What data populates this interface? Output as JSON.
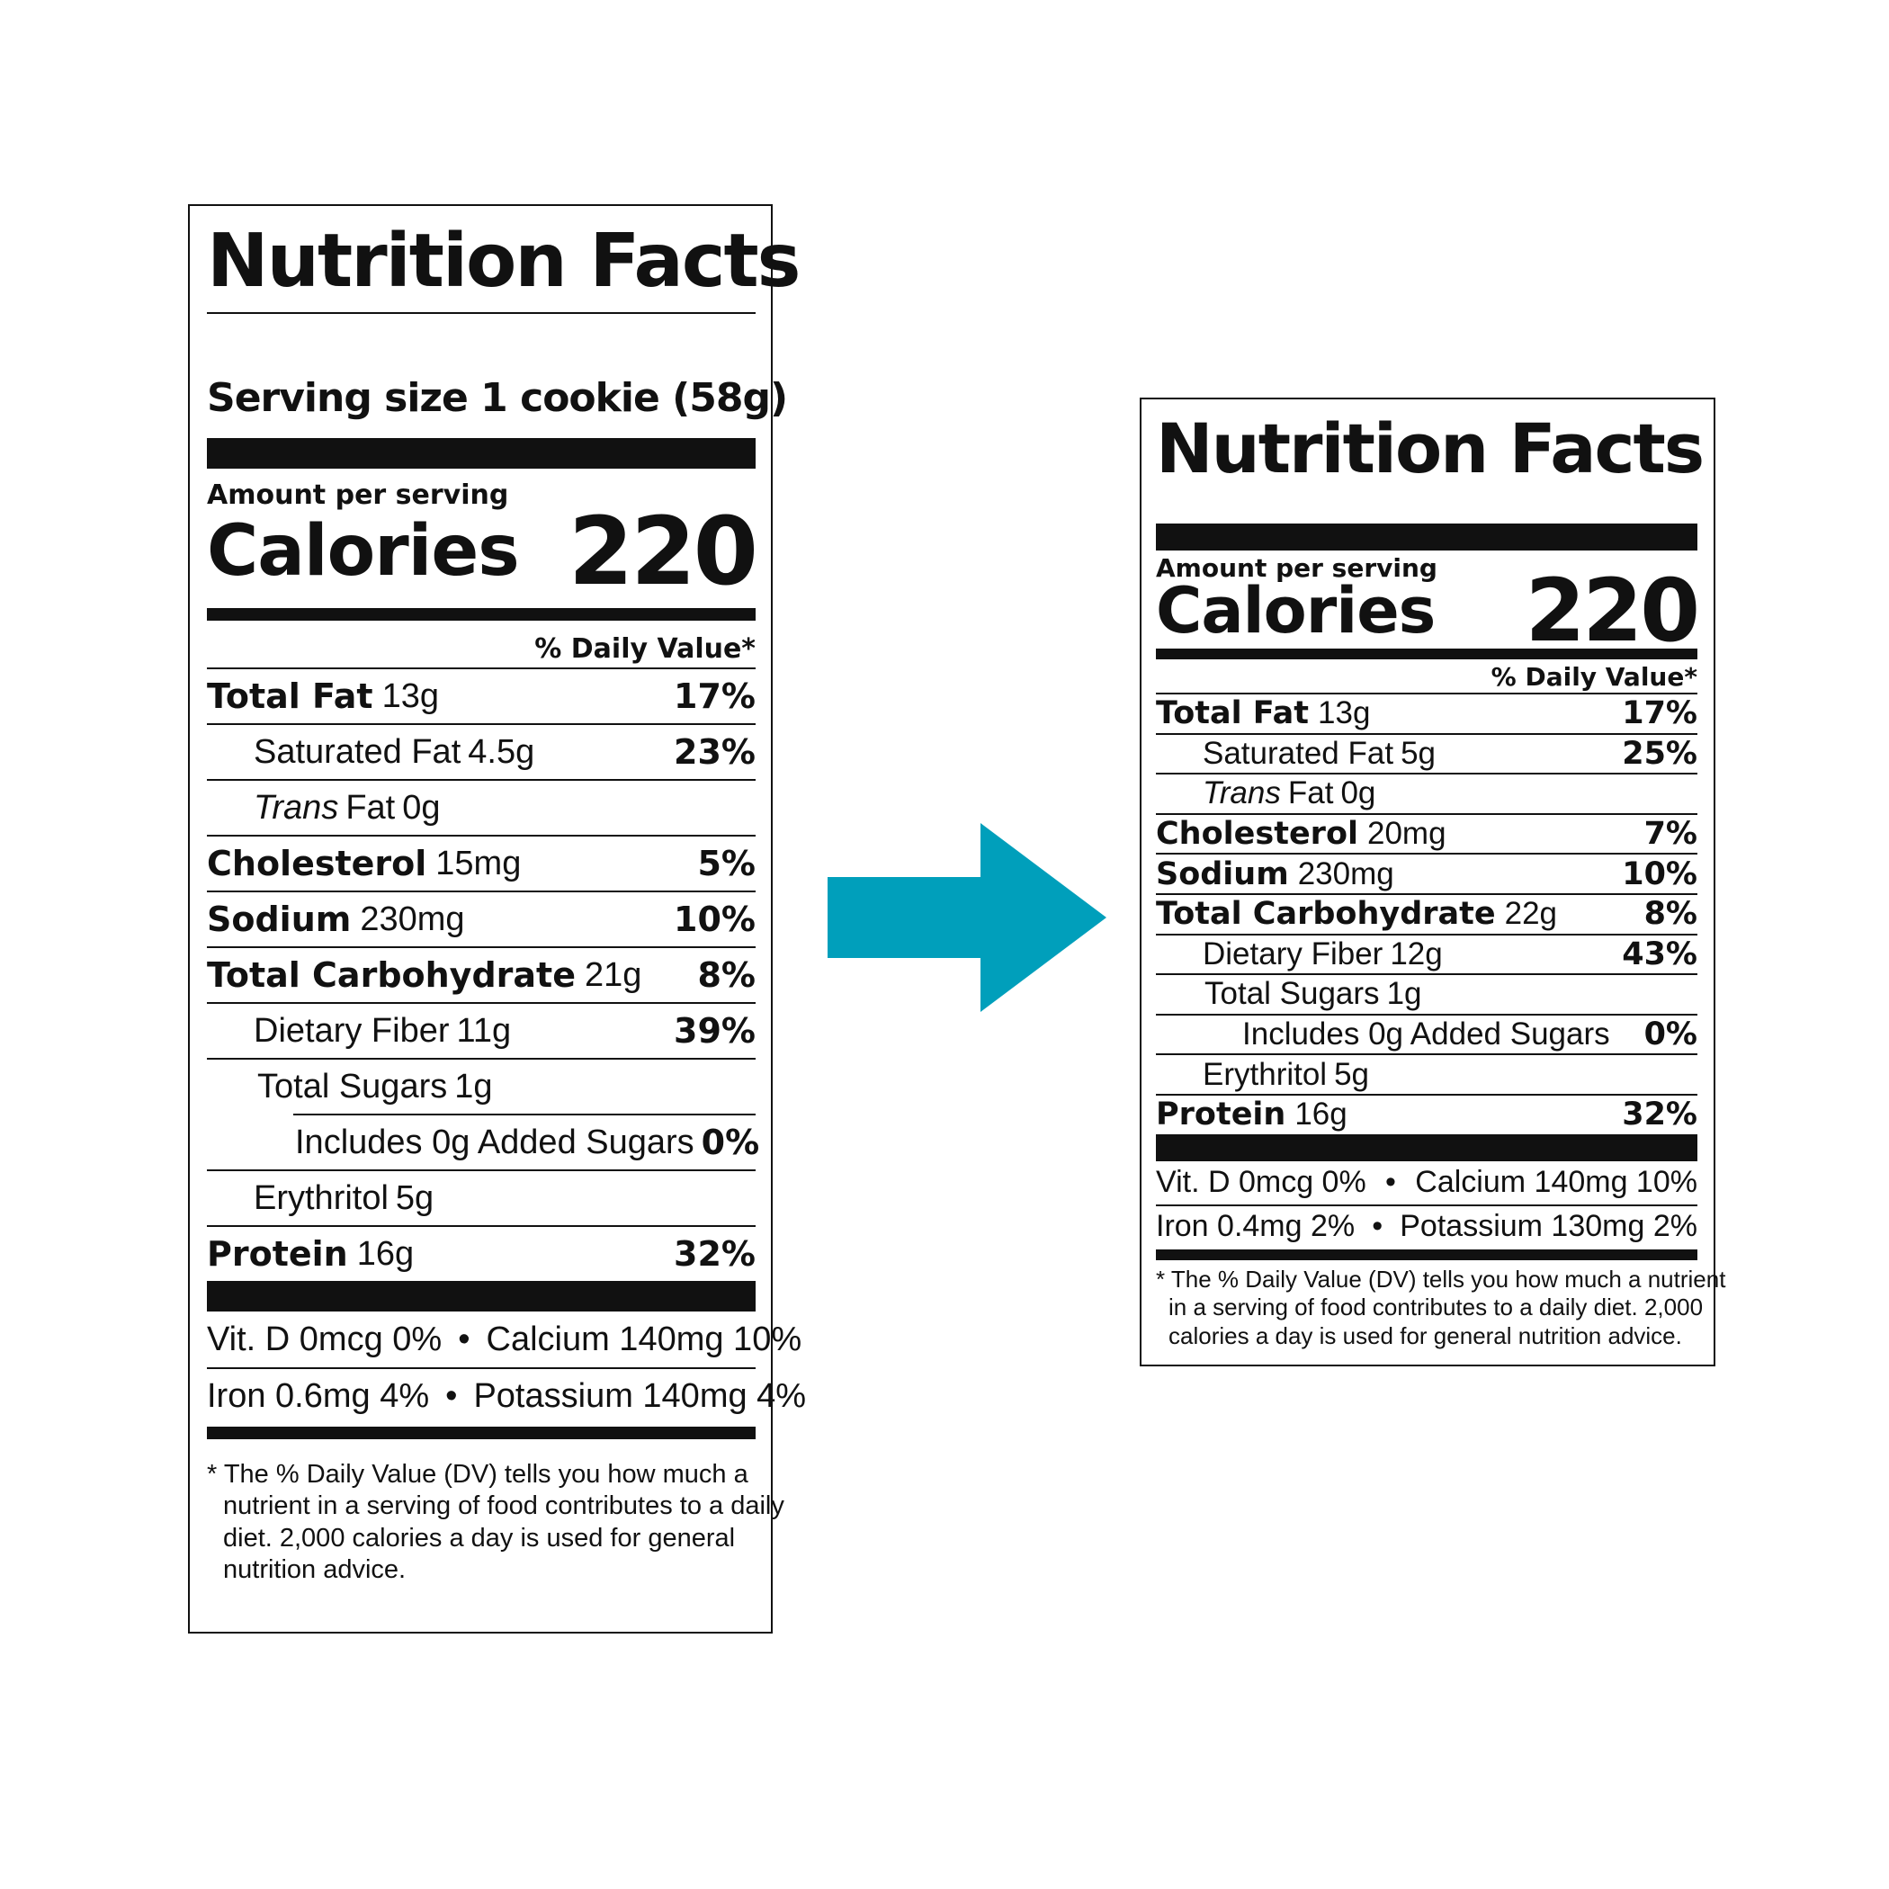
{
  "colors": {
    "arrow": "#009fbb",
    "ink": "#111111"
  },
  "arrow_icon": "right-arrow-icon",
  "before": {
    "title": "Nutrition Facts",
    "serving_size": "Serving size 1 cookie (58g)",
    "amount_per_serving": "Amount per serving",
    "calories_label": "Calories",
    "calories_value": "220",
    "dv_header": "% Daily Value*",
    "nutrients": [
      {
        "name": "Total Fat",
        "amount": "13g",
        "dv": "17%"
      },
      {
        "name": "Saturated Fat",
        "amount": "4.5g",
        "dv": "23%"
      },
      {
        "name_italic": "Trans",
        "name": "Fat",
        "amount": "0g",
        "dv": ""
      },
      {
        "name": "Cholesterol",
        "amount": "15mg",
        "dv": "5%"
      },
      {
        "name": "Sodium",
        "amount": "230mg",
        "dv": "10%"
      },
      {
        "name": "Total Carbohydrate",
        "amount": "21g",
        "dv": "8%"
      },
      {
        "name": "Dietary Fiber",
        "amount": "11g",
        "dv": "39%"
      },
      {
        "name": "Total Sugars",
        "amount": "1g",
        "dv": ""
      },
      {
        "name": "Includes 0g Added Sugars",
        "amount": "",
        "dv": "0%"
      },
      {
        "name": "Erythritol",
        "amount": "5g",
        "dv": ""
      },
      {
        "name": "Protein",
        "amount": "16g",
        "dv": "32%"
      }
    ],
    "vitamins": [
      {
        "left": "Vit. D 0mcg 0%",
        "right": "Calcium 140mg 10%"
      },
      {
        "left": "Iron 0.6mg 4%",
        "right": "Potassium 140mg 4%"
      }
    ],
    "footnote": [
      "* The % Daily Value (DV) tells you how much a",
      "nutrient in a serving of food contributes to a daily",
      "diet. 2,000 calories a day is used for general",
      "nutrition advice."
    ]
  },
  "after": {
    "title": "Nutrition Facts",
    "amount_per_serving": "Amount per serving",
    "calories_label": "Calories",
    "calories_value": "220",
    "dv_header": "% Daily Value*",
    "nutrients": [
      {
        "name": "Total Fat",
        "amount": "13g",
        "dv": "17%"
      },
      {
        "name": "Saturated Fat",
        "amount": "5g",
        "dv": "25%"
      },
      {
        "name_italic": "Trans",
        "name": "Fat",
        "amount": "0g",
        "dv": ""
      },
      {
        "name": "Cholesterol",
        "amount": "20mg",
        "dv": "7%"
      },
      {
        "name": "Sodium",
        "amount": "230mg",
        "dv": "10%"
      },
      {
        "name": "Total Carbohydrate",
        "amount": "22g",
        "dv": "8%"
      },
      {
        "name": "Dietary Fiber",
        "amount": "12g",
        "dv": "43%"
      },
      {
        "name": "Total Sugars",
        "amount": "1g",
        "dv": ""
      },
      {
        "name": "Includes 0g Added Sugars",
        "amount": "",
        "dv": "0%"
      },
      {
        "name": "Erythritol",
        "amount": "5g",
        "dv": ""
      },
      {
        "name": "Protein",
        "amount": "16g",
        "dv": "32%"
      }
    ],
    "vitamins": [
      {
        "left": "Vit. D 0mcg 0%",
        "right": "Calcium 140mg 10%"
      },
      {
        "left": "Iron 0.4mg 2%",
        "right": "Potassium 130mg 2%"
      }
    ],
    "footnote": [
      "* The % Daily Value (DV) tells you how much a nutrient",
      "in a serving of food contributes to a daily diet. 2,000",
      "calories a day is used for general nutrition advice."
    ]
  }
}
